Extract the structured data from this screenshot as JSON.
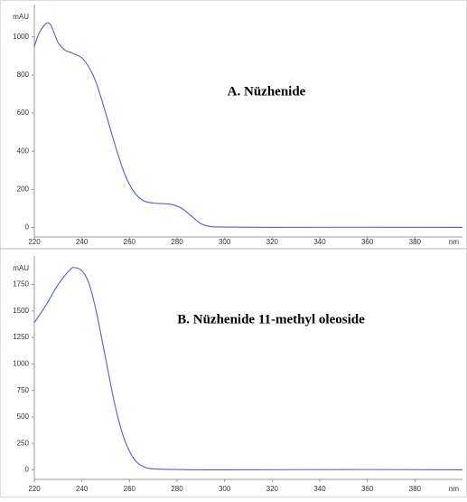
{
  "chart_data": [
    {
      "type": "line",
      "title": "A. Nüzhenide",
      "y_label": "mAU",
      "x_label": "nm",
      "x": [
        220,
        222,
        225,
        227,
        230,
        233,
        236,
        240,
        243,
        246,
        250,
        254,
        258,
        262,
        266,
        270,
        274,
        278,
        282,
        286,
        290,
        294,
        300,
        320,
        350,
        400
      ],
      "values": [
        950,
        1020,
        1070,
        1060,
        970,
        930,
        915,
        890,
        840,
        760,
        600,
        430,
        280,
        185,
        140,
        128,
        125,
        120,
        100,
        60,
        20,
        5,
        2,
        0,
        1,
        0
      ],
      "color": "#5a5ad8",
      "xlim": [
        220,
        400
      ],
      "ylim": [
        -50,
        1170
      ],
      "xticks": [
        220,
        240,
        260,
        280,
        300,
        320,
        340,
        360,
        380
      ],
      "yticks": [
        0,
        200,
        400,
        600,
        800,
        1000
      ],
      "grid": false
    },
    {
      "type": "line",
      "title": "B. Nüzhenide 11-methyl oleoside",
      "y_label": "mAU",
      "x_label": "nm",
      "x": [
        220,
        225,
        230,
        235,
        237,
        240,
        243,
        246,
        250,
        254,
        258,
        262,
        266,
        270,
        280,
        300,
        360,
        400
      ],
      "values": [
        1390,
        1560,
        1750,
        1890,
        1910,
        1880,
        1760,
        1500,
        1050,
        600,
        280,
        100,
        30,
        10,
        3,
        0,
        3,
        0
      ],
      "color": "#5a5ad8",
      "xlim": [
        220,
        400
      ],
      "ylim": [
        -90,
        2020
      ],
      "xticks": [
        220,
        240,
        260,
        280,
        300,
        320,
        340,
        360,
        380
      ],
      "yticks": [
        0,
        250,
        500,
        750,
        1000,
        1250,
        1500,
        1750
      ],
      "grid": false
    }
  ]
}
